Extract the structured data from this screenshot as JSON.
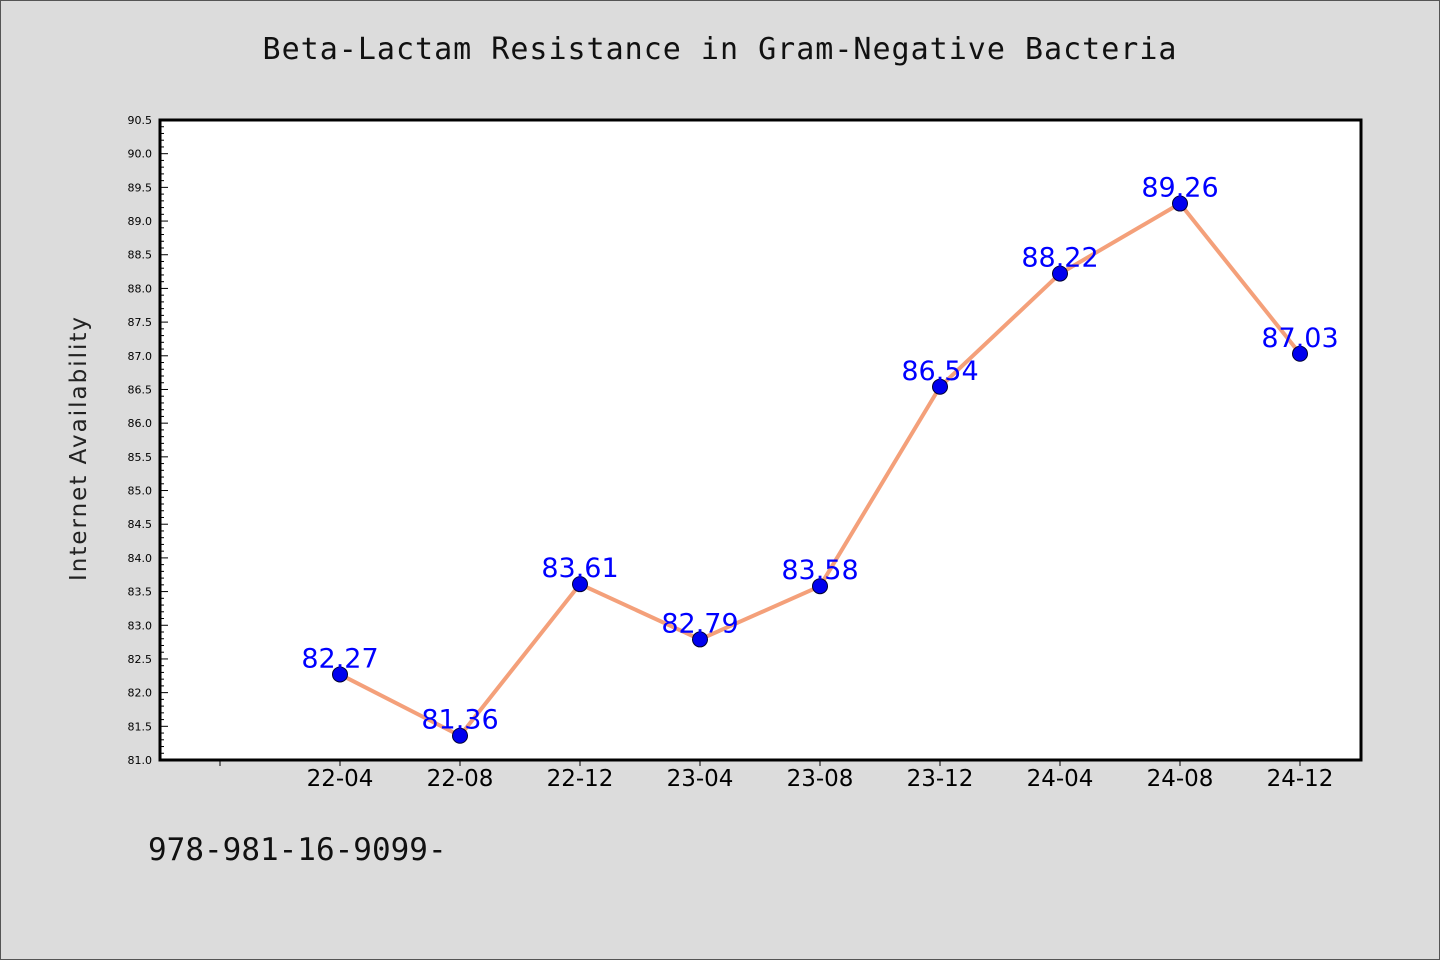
{
  "chart_data": {
    "type": "line",
    "title": "Beta-Lactam Resistance in Gram-Negative Bacteria",
    "xlabel": "",
    "ylabel": "Internet Availability",
    "categories": [
      "22-04",
      "22-08",
      "22-12",
      "23-04",
      "23-08",
      "23-12",
      "24-04",
      "24-08",
      "24-12"
    ],
    "series": [
      {
        "values": [
          82.27,
          81.36,
          83.61,
          82.79,
          83.58,
          86.54,
          88.22,
          89.26,
          87.03
        ],
        "data_labels": [
          "82.27",
          "81.36",
          "83.61",
          "82.79",
          "83.58",
          "86.54",
          "88.22",
          "89.26",
          "87.03"
        ]
      }
    ],
    "ylim": [
      81.0,
      90.5
    ],
    "yticks": [
      "81.0",
      "81.5",
      "82.0",
      "82.5",
      "83.0",
      "83.5",
      "84.0",
      "84.5",
      "85.0",
      "85.5",
      "86.0",
      "86.5",
      "87.0",
      "87.5",
      "88.0",
      "88.5",
      "89.0",
      "89.5",
      "90.0",
      "90.5"
    ],
    "grid": false,
    "legend": "none",
    "colors": {
      "line": "#f4a07a",
      "marker": "#0000ee",
      "label": "#0000ff",
      "background": "#dcdcdc",
      "plot_background": "#ffffff"
    }
  },
  "footer": {
    "text": "978-981-16-9099-"
  }
}
